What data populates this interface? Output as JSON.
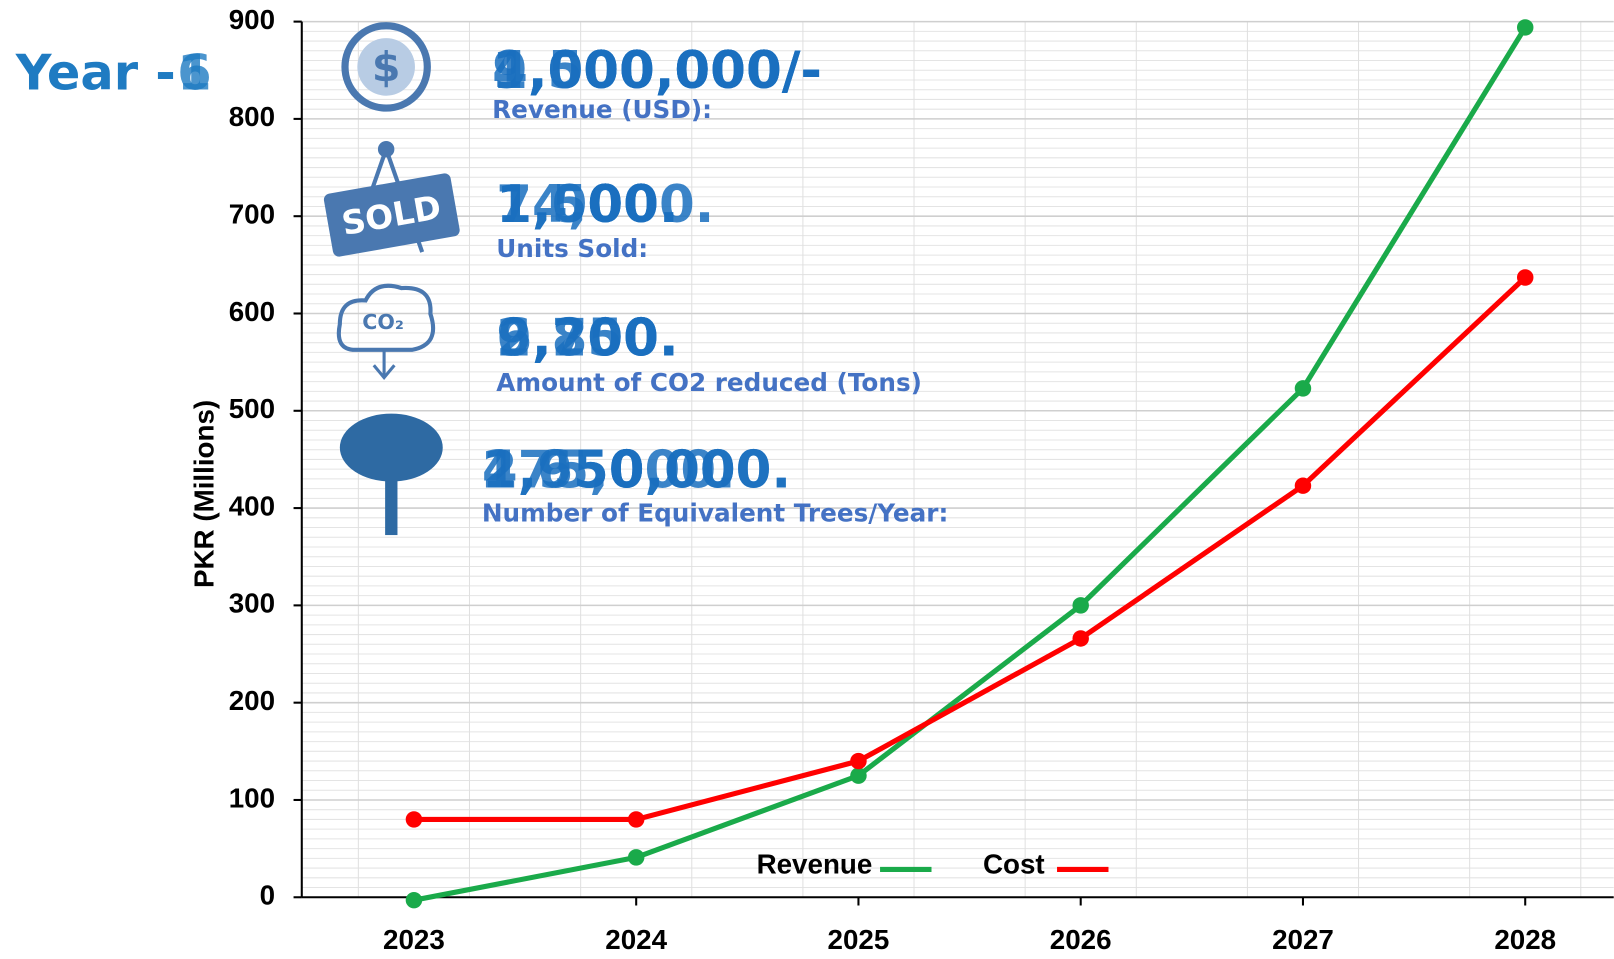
{
  "chart_data": {
    "type": "line",
    "y_label": "PKR (Millions)",
    "categories": [
      "2023",
      "2024",
      "2025",
      "2026",
      "2027",
      "2028"
    ],
    "series": [
      {
        "name": "Revenue",
        "color": "#1aaa4a",
        "values": [
          -3,
          41,
          125,
          300,
          523,
          894
        ]
      },
      {
        "name": "Cost",
        "color": "#ff0000",
        "values": [
          80,
          80,
          140,
          266,
          423,
          637
        ]
      }
    ],
    "ylim": [
      0,
      900
    ],
    "yticks": [
      0,
      100,
      200,
      300,
      400,
      500,
      600,
      700,
      800,
      900
    ],
    "grid": true
  },
  "overlay": {
    "year_prefix": "Year -",
    "year_values": [
      "1",
      "6"
    ],
    "stats": [
      {
        "label": "Revenue (USD):",
        "values": [
          "1,500,000/-",
          "4,000,000/-",
          "9,000,000/-"
        ]
      },
      {
        "label": "Units Sold:",
        "values": [
          "1,000.",
          "7,500.",
          "14,000."
        ]
      },
      {
        "label": "Amount of CO2 reduced (Tons)",
        "values": [
          "9,200.",
          "2,700.",
          "6,850."
        ]
      },
      {
        "label": "Number of Equivalent Trees/Year:",
        "values": [
          "175,000.",
          "2,950,000.",
          "4,650,000."
        ]
      }
    ]
  }
}
